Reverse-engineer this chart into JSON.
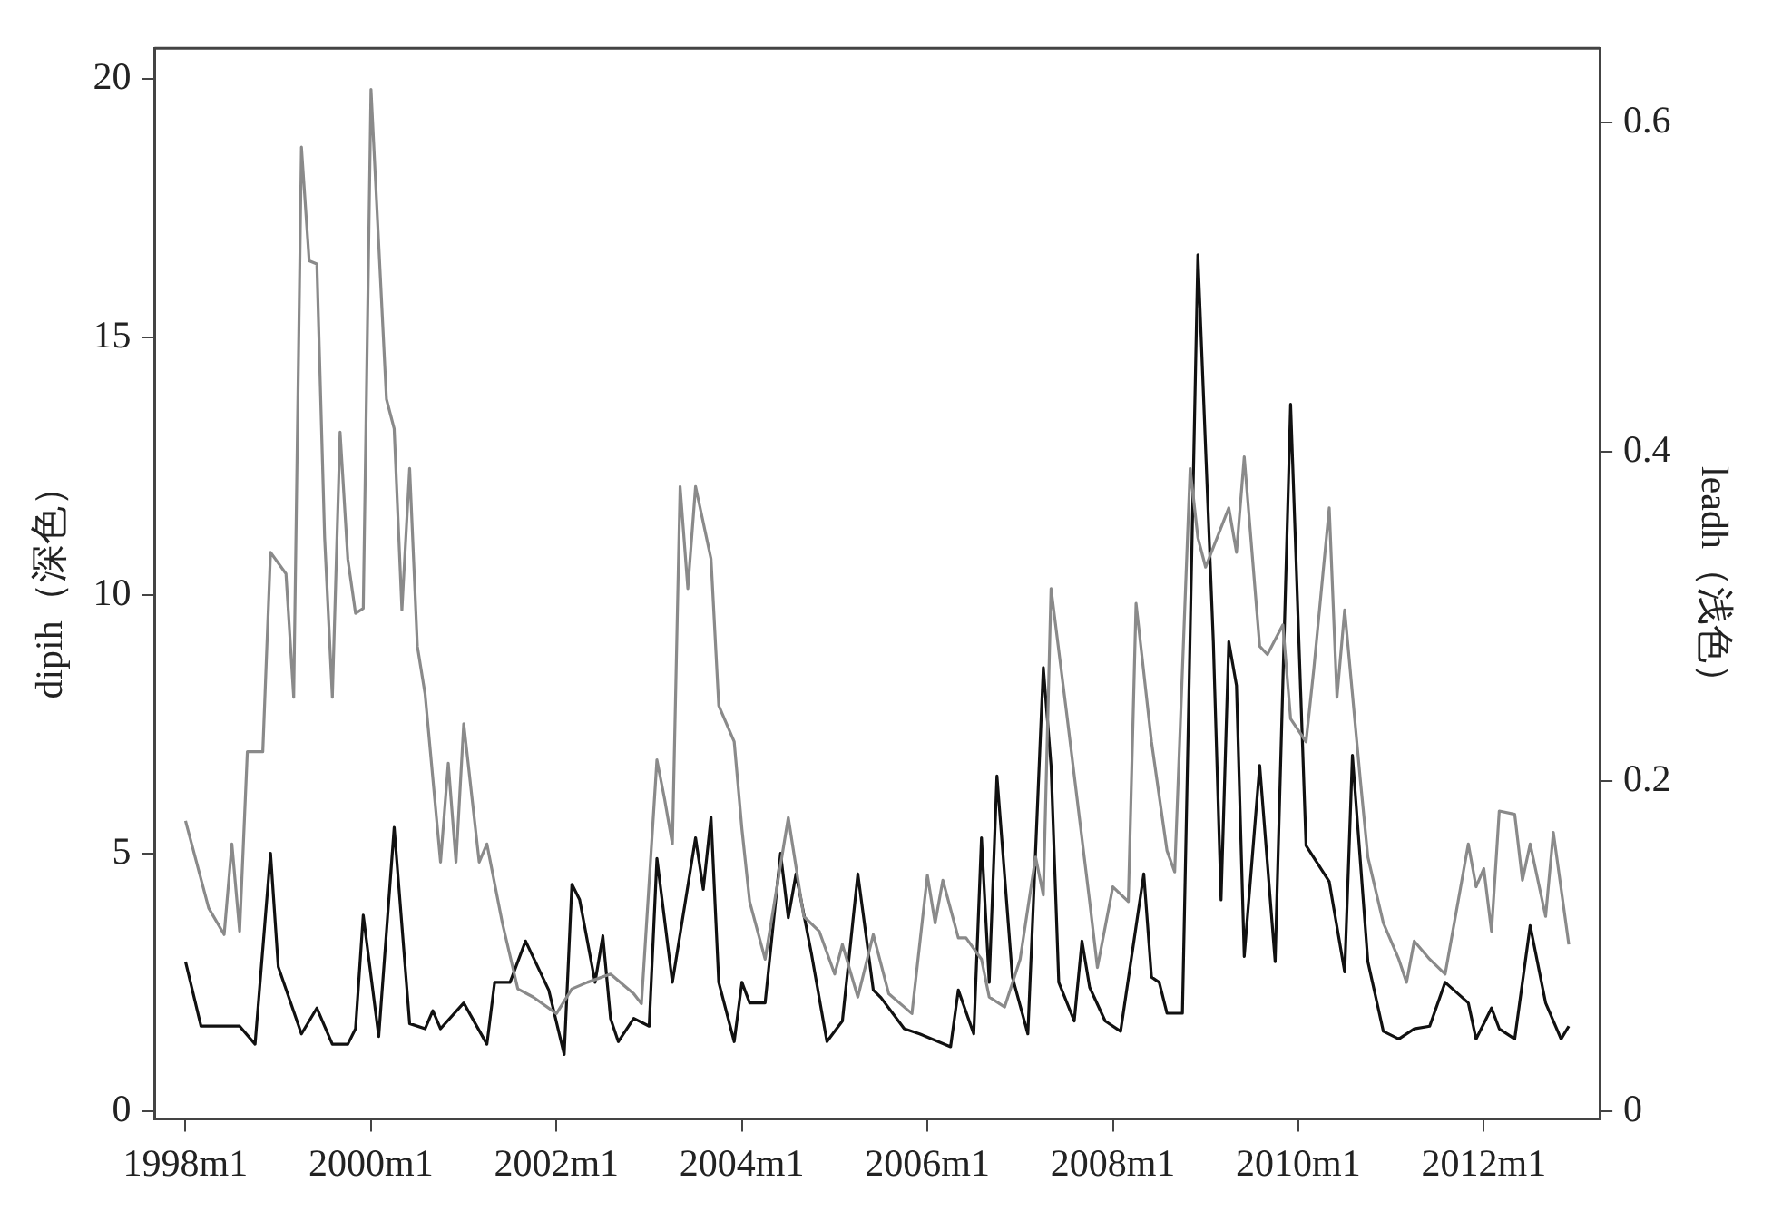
{
  "chart_data": {
    "type": "line",
    "ylabel": "dipih（深色）",
    "y2label": "leadh（浅色）",
    "xlim": [
      "1997-09",
      "2013-04"
    ],
    "xticks": [
      {
        "value": "1998-01",
        "label": "1998m1"
      },
      {
        "value": "2000-01",
        "label": "2000m1"
      },
      {
        "value": "2002-01",
        "label": "2002m1"
      },
      {
        "value": "2004-01",
        "label": "2004m1"
      },
      {
        "value": "2006-01",
        "label": "2006m1"
      },
      {
        "value": "2008-01",
        "label": "2008m1"
      },
      {
        "value": "2010-01",
        "label": "2010m1"
      },
      {
        "value": "2012-01",
        "label": "2012m1"
      }
    ],
    "ylim": [
      -0.15,
      20.6
    ],
    "yticks": [
      0,
      5,
      10,
      15,
      20
    ],
    "y2lim": [
      -0.005,
      0.645
    ],
    "y2ticks": [
      0,
      0.2,
      0.4,
      0.6
    ],
    "grid": false,
    "legend": false,
    "marker": "none",
    "line_style": "solid",
    "series": [
      {
        "color": "#8a8a8a",
        "axis": "y2",
        "x": [
          "1998-01",
          "1998-04",
          "1998-06",
          "1998-07",
          "1998-08",
          "1998-09",
          "1998-11",
          "1998-12",
          "1999-02",
          "1999-03",
          "1999-04",
          "1999-05",
          "1999-06",
          "1999-07",
          "1999-08",
          "1999-09",
          "1999-10",
          "1999-11",
          "1999-12",
          "2000-01",
          "2000-03",
          "2000-04",
          "2000-05",
          "2000-06",
          "2000-07",
          "2000-08",
          "2000-10",
          "2000-11",
          "2000-12",
          "2001-01",
          "2001-03",
          "2001-04",
          "2001-06",
          "2001-08",
          "2001-10",
          "2002-01",
          "2002-03",
          "2002-05",
          "2002-08",
          "2002-11",
          "2002-12",
          "2003-02",
          "2003-03",
          "2003-04",
          "2003-05",
          "2003-06",
          "2003-07",
          "2003-09",
          "2003-10",
          "2003-12",
          "2004-01",
          "2004-02",
          "2004-04",
          "2004-07",
          "2004-09",
          "2004-11",
          "2005-01",
          "2005-02",
          "2005-04",
          "2005-06",
          "2005-08",
          "2005-10",
          "2005-11",
          "2006-01",
          "2006-02",
          "2006-03",
          "2006-05",
          "2006-06",
          "2006-08",
          "2006-09",
          "2006-11",
          "2007-01",
          "2007-03",
          "2007-04",
          "2007-05",
          "2007-07",
          "2007-10",
          "2007-11",
          "2008-01",
          "2008-03",
          "2008-04",
          "2008-06",
          "2008-08",
          "2008-09",
          "2008-11",
          "2008-12",
          "2009-01",
          "2009-04",
          "2009-05",
          "2009-06",
          "2009-08",
          "2009-09",
          "2009-11",
          "2009-12",
          "2010-02",
          "2010-03",
          "2010-05",
          "2010-06",
          "2010-07",
          "2010-09",
          "2010-10",
          "2010-12",
          "2011-02",
          "2011-03",
          "2011-04",
          "2011-06",
          "2011-08",
          "2011-11",
          "2011-12",
          "2012-01",
          "2012-02",
          "2012-03",
          "2012-05",
          "2012-06",
          "2012-07",
          "2012-09",
          "2012-10",
          "2012-12"
        ],
        "values": [
          0.176,
          0.123,
          0.107,
          0.162,
          0.109,
          0.218,
          0.218,
          0.339,
          0.326,
          0.251,
          0.585,
          0.516,
          0.514,
          0.348,
          0.251,
          0.412,
          0.335,
          0.302,
          0.305,
          0.62,
          0.432,
          0.414,
          0.304,
          0.39,
          0.282,
          0.253,
          0.151,
          0.211,
          0.151,
          0.235,
          0.151,
          0.162,
          0.114,
          0.074,
          0.069,
          0.059,
          0.074,
          0.078,
          0.083,
          0.071,
          0.065,
          0.213,
          0.189,
          0.162,
          0.379,
          0.317,
          0.379,
          0.335,
          0.246,
          0.224,
          0.171,
          0.127,
          0.092,
          0.178,
          0.118,
          0.109,
          0.083,
          0.101,
          0.069,
          0.107,
          0.071,
          0.063,
          0.059,
          0.143,
          0.114,
          0.14,
          0.105,
          0.105,
          0.092,
          0.069,
          0.063,
          0.092,
          0.154,
          0.131,
          0.317,
          0.242,
          0.127,
          0.087,
          0.136,
          0.127,
          0.308,
          0.224,
          0.158,
          0.145,
          0.39,
          0.348,
          0.33,
          0.366,
          0.339,
          0.397,
          0.282,
          0.277,
          0.295,
          0.238,
          0.224,
          0.268,
          0.366,
          0.251,
          0.304,
          0.202,
          0.154,
          0.114,
          0.092,
          0.078,
          0.103,
          0.092,
          0.083,
          0.162,
          0.136,
          0.147,
          0.109,
          0.182,
          0.18,
          0.14,
          0.162,
          0.118,
          0.169,
          0.101
        ]
      },
      {
        "color": "#111111",
        "x": [
          "1998-01",
          "1998-03",
          "1998-08",
          "1998-10",
          "1998-12",
          "1999-01",
          "1999-04",
          "1999-06",
          "1999-08",
          "1999-10",
          "1999-11",
          "1999-12",
          "2000-02",
          "2000-04",
          "2000-06",
          "2000-08",
          "2000-09",
          "2000-10",
          "2001-01",
          "2001-04",
          "2001-05",
          "2001-07",
          "2001-09",
          "2001-12",
          "2002-02",
          "2002-03",
          "2002-04",
          "2002-06",
          "2002-07",
          "2002-08",
          "2002-09",
          "2002-11",
          "2003-01",
          "2003-02",
          "2003-04",
          "2003-07",
          "2003-08",
          "2003-09",
          "2003-10",
          "2003-12",
          "2004-01",
          "2004-02",
          "2004-04",
          "2004-06",
          "2004-07",
          "2004-08",
          "2004-10",
          "2004-12",
          "2005-02",
          "2005-04",
          "2005-06",
          "2005-07",
          "2005-10",
          "2005-12",
          "2006-04",
          "2006-05",
          "2006-07",
          "2006-08",
          "2006-09",
          "2006-10",
          "2006-12",
          "2007-02",
          "2007-04",
          "2007-05",
          "2007-06",
          "2007-08",
          "2007-09",
          "2007-10",
          "2007-12",
          "2008-02",
          "2008-05",
          "2008-06",
          "2008-07",
          "2008-08",
          "2008-10",
          "2008-12",
          "2009-02",
          "2009-03",
          "2009-04",
          "2009-05",
          "2009-06",
          "2009-08",
          "2009-10",
          "2009-12",
          "2010-02",
          "2010-05",
          "2010-07",
          "2010-08",
          "2010-10",
          "2010-12",
          "2011-02",
          "2011-04",
          "2011-06",
          "2011-08",
          "2011-11",
          "2011-12",
          "2012-02",
          "2012-03",
          "2012-05",
          "2012-07",
          "2012-09",
          "2012-11",
          "2012-12"
        ],
        "values": [
          2.9,
          1.65,
          1.65,
          1.3,
          5.0,
          2.8,
          1.5,
          2.0,
          1.3,
          1.3,
          1.6,
          3.8,
          1.45,
          5.5,
          1.7,
          1.6,
          1.95,
          1.6,
          2.1,
          1.3,
          2.5,
          2.5,
          3.3,
          2.35,
          1.1,
          4.4,
          4.1,
          2.5,
          3.4,
          1.8,
          1.35,
          1.8,
          1.65,
          4.9,
          2.5,
          5.3,
          4.3,
          5.7,
          2.5,
          1.35,
          2.5,
          2.1,
          2.1,
          5.0,
          3.75,
          4.6,
          3.05,
          1.35,
          1.75,
          4.6,
          2.35,
          2.2,
          1.6,
          1.5,
          1.25,
          2.35,
          1.5,
          5.3,
          2.5,
          6.5,
          2.6,
          1.5,
          8.6,
          6.7,
          2.5,
          1.75,
          3.3,
          2.4,
          1.75,
          1.55,
          4.6,
          2.6,
          2.5,
          1.9,
          1.9,
          16.6,
          9.1,
          4.1,
          9.1,
          8.25,
          3.0,
          6.7,
          2.9,
          13.7,
          5.15,
          4.45,
          2.7,
          6.9,
          2.9,
          1.55,
          1.4,
          1.6,
          1.65,
          2.5,
          2.1,
          1.4,
          2.0,
          1.6,
          1.4,
          3.6,
          2.1,
          1.4,
          1.65
        ]
      }
    ]
  }
}
